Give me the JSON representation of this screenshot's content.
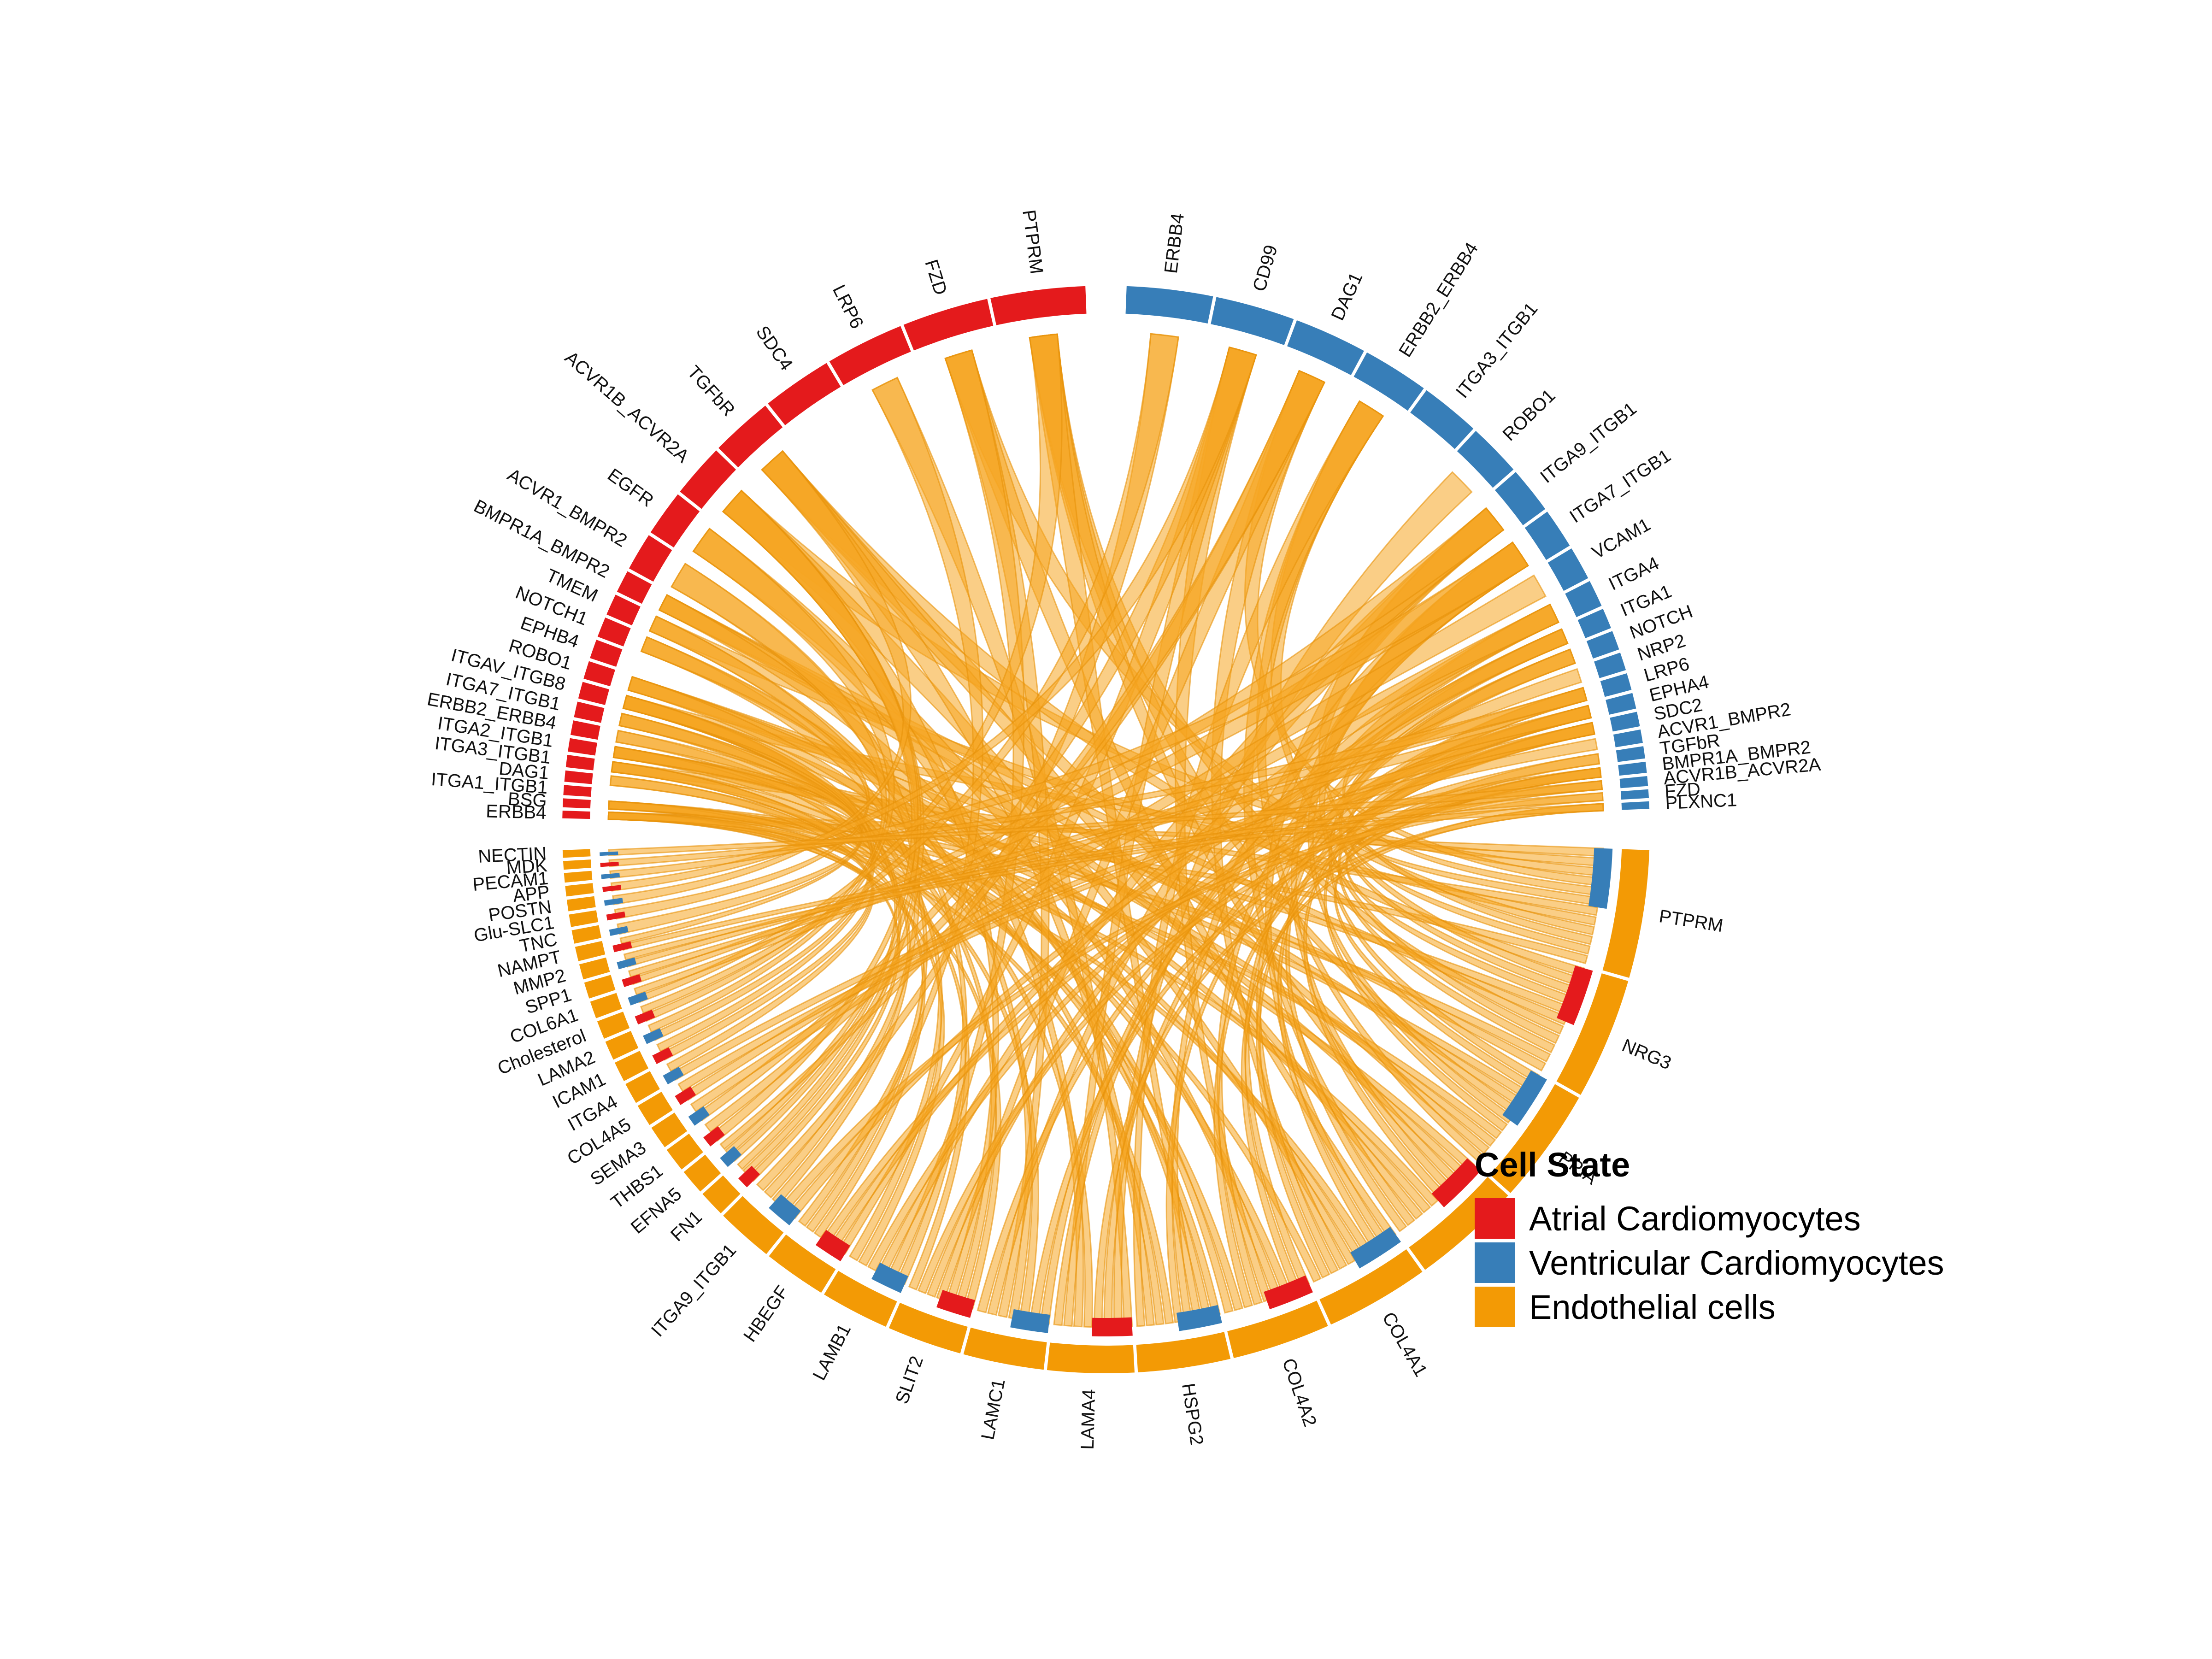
{
  "chart_data": {
    "type": "chord",
    "legend": {
      "title": "Cell State",
      "placement": "right",
      "items": [
        {
          "label": "Atrial Cardiomyocytes",
          "color": "#E41A1C"
        },
        {
          "label": "Ventricular Cardiomyocytes",
          "color": "#377EB8"
        },
        {
          "label": "Endothelial cells",
          "color": "#F39A05"
        }
      ]
    },
    "link_color": "#F5A623",
    "atrial_receptors": [
      "ERBB4",
      "BSG",
      "ITGA1_ITGB1",
      "DAG1",
      "ITGA3_ITGB1",
      "ITGA2_ITGB1",
      "ERBB2_ERBB4",
      "ITGA7_ITGB1",
      "ITGAV_ITGB8",
      "ROBO1",
      "EPHB4",
      "NOTCH1",
      "TMEM",
      "BMPR1A_BMPR2",
      "ACVR1_BMPR2",
      "EGFR",
      "ACVR1B_ACVR2A",
      "TGFbR",
      "SDC4",
      "LRP6",
      "FZD",
      "PTPRM"
    ],
    "ventricular_receptors": [
      "ERBB4",
      "CD99",
      "DAG1",
      "ERBB2_ERBB4",
      "ITGA3_ITGB1",
      "ROBO1",
      "ITGA9_ITGB1",
      "ITGA7_ITGB1",
      "VCAM1",
      "ITGA4",
      "ITGA1",
      "NOTCH",
      "NRP2",
      "LRP6",
      "EPHA4",
      "SDC2",
      "ACVR1_BMPR2",
      "TGFbR",
      "BMPR1A_BMPR2",
      "ACVR1B_ACVR2A",
      "FZD",
      "PLXNC1"
    ],
    "endothelial_ligands": [
      "PTPRM",
      "NRG3",
      "PPIA",
      "CD99",
      "COL4A1",
      "COL4A2",
      "HSPG2",
      "LAMA4",
      "LAMC1",
      "SLIT2",
      "LAMB1",
      "HBEGF",
      "ITGA9_ITGB1",
      "FN1",
      "EFNA5",
      "THBS1",
      "SEMA3",
      "COL4A5",
      "ITGA4",
      "ICAM1",
      "LAMA2",
      "Cholesterol",
      "COL6A1",
      "SPP1",
      "MMP2",
      "NAMPT",
      "TNC",
      "Glu-SLC1",
      "POSTN",
      "APP",
      "PECAM1",
      "MDK",
      "NECTIN"
    ]
  }
}
